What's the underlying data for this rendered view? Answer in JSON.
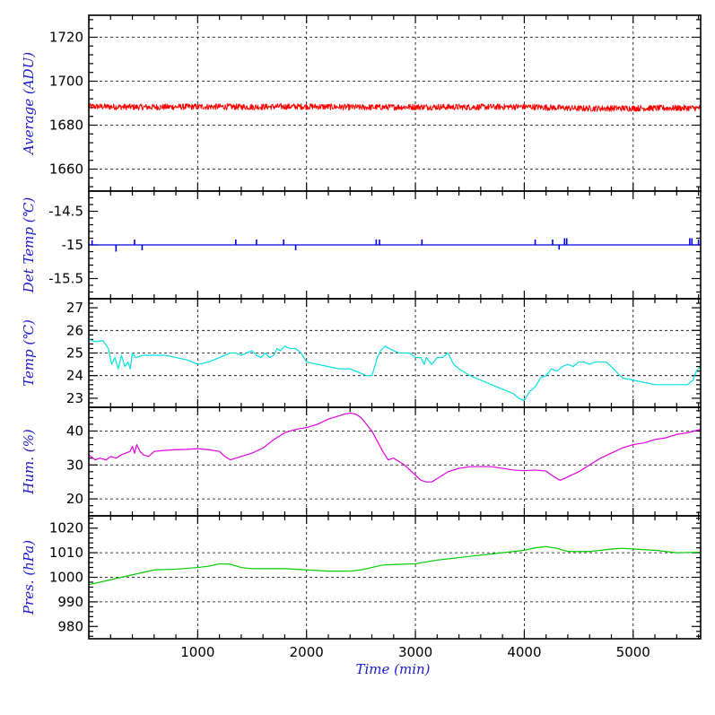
{
  "chart_data": [
    {
      "type": "line",
      "ylabel": "Average (ADU)",
      "xlim": [
        0,
        5620
      ],
      "ylim": [
        1650,
        1730
      ],
      "yticks": [
        1660,
        1680,
        1700,
        1720
      ],
      "ygrid": [
        1660,
        1680,
        1700,
        1720
      ],
      "minor_step": 4,
      "grid": true,
      "series": [
        {
          "color": "#ff0000",
          "noise": 1.4,
          "x": [
            0,
            500,
            1000,
            1500,
            2000,
            2500,
            3000,
            3500,
            4000,
            4500,
            5000,
            5620
          ],
          "y": [
            1688.5,
            1688.2,
            1688.4,
            1688.3,
            1688.5,
            1688.1,
            1688.3,
            1688.2,
            1688.4,
            1687.6,
            1687.7,
            1687.8
          ]
        }
      ]
    },
    {
      "type": "line",
      "ylabel": "Det Temp (℃)",
      "xlim": [
        0,
        5620
      ],
      "ylim": [
        -15.8,
        -14.2
      ],
      "yticks": [
        -15.5,
        -15,
        -14.5
      ],
      "ygrid": [],
      "minor_step": 0.1,
      "grid": false,
      "series": [
        {
          "color": "#0000dd",
          "baseline": -15,
          "x": [
            0,
            5620
          ],
          "y": [
            -15,
            -15
          ],
          "spikes": [
            [
              30,
              -14.93
            ],
            [
              250,
              -15.1
            ],
            [
              420,
              -14.92
            ],
            [
              490,
              -15.08
            ],
            [
              1350,
              -14.92
            ],
            [
              1540,
              -14.92
            ],
            [
              1790,
              -14.92
            ],
            [
              1900,
              -15.08
            ],
            [
              2640,
              -14.92
            ],
            [
              2670,
              -14.92
            ],
            [
              3060,
              -14.92
            ],
            [
              4100,
              -14.92
            ],
            [
              4260,
              -14.92
            ],
            [
              4320,
              -15.07
            ],
            [
              4370,
              -14.9
            ],
            [
              4390,
              -14.9
            ],
            [
              5520,
              -14.9
            ],
            [
              5540,
              -14.9
            ],
            [
              5600,
              -14.92
            ]
          ]
        }
      ]
    },
    {
      "type": "line",
      "ylabel": "Temp (℃)",
      "xlim": [
        0,
        5620
      ],
      "ylim": [
        22.6,
        27.4
      ],
      "yticks": [
        23,
        24,
        25,
        26,
        27
      ],
      "ygrid": [
        24,
        25,
        26
      ],
      "minor_step": 0.2,
      "grid": true,
      "series": [
        {
          "color": "#00e0e0",
          "x": [
            0,
            60,
            130,
            180,
            210,
            240,
            270,
            300,
            330,
            360,
            380,
            400,
            430,
            500,
            600,
            700,
            800,
            900,
            1000,
            1100,
            1200,
            1250,
            1300,
            1350,
            1400,
            1450,
            1500,
            1540,
            1580,
            1620,
            1660,
            1700,
            1730,
            1760,
            1800,
            1850,
            1900,
            1950,
            2000,
            2100,
            2200,
            2300,
            2400,
            2500,
            2550,
            2600,
            2620,
            2650,
            2680,
            2720,
            2760,
            2800,
            2850,
            2900,
            2950,
            3000,
            3050,
            3080,
            3100,
            3150,
            3200,
            3250,
            3300,
            3350,
            3400,
            3500,
            3600,
            3700,
            3800,
            3900,
            3950,
            4000,
            4050,
            4100,
            4150,
            4200,
            4250,
            4300,
            4350,
            4400,
            4450,
            4500,
            4550,
            4600,
            4650,
            4700,
            4750,
            4800,
            4900,
            5000,
            5100,
            5200,
            5300,
            5400,
            5450,
            5500,
            5550,
            5580,
            5620
          ],
          "y": [
            25.6,
            25.5,
            25.55,
            25.2,
            24.5,
            24.8,
            24.3,
            24.9,
            24.4,
            24.6,
            24.3,
            25.0,
            24.8,
            24.9,
            24.9,
            24.9,
            24.8,
            24.7,
            24.5,
            24.6,
            24.8,
            24.9,
            25.0,
            25.0,
            24.9,
            25.0,
            25.1,
            24.9,
            24.8,
            25.0,
            24.8,
            24.9,
            25.2,
            25.1,
            25.3,
            25.2,
            25.2,
            25.0,
            24.6,
            24.5,
            24.4,
            24.3,
            24.3,
            24.1,
            24.0,
            24.0,
            24.3,
            24.8,
            25.1,
            25.3,
            25.2,
            25.1,
            25.0,
            25.0,
            25.0,
            24.8,
            24.8,
            24.5,
            24.8,
            24.5,
            24.8,
            24.8,
            25.0,
            24.5,
            24.3,
            24.0,
            23.8,
            23.6,
            23.4,
            23.2,
            23.0,
            22.9,
            23.3,
            23.5,
            23.9,
            24.0,
            24.3,
            24.2,
            24.4,
            24.5,
            24.4,
            24.6,
            24.6,
            24.5,
            24.6,
            24.6,
            24.6,
            24.4,
            23.9,
            23.8,
            23.7,
            23.6,
            23.6,
            23.6,
            23.6,
            23.6,
            23.8,
            24.2,
            24.4
          ]
        }
      ]
    },
    {
      "type": "line",
      "ylabel": "Hum. (%)",
      "xlim": [
        0,
        5620
      ],
      "ylim": [
        15,
        47
      ],
      "yticks": [
        20,
        30,
        40
      ],
      "ygrid": [
        20,
        30,
        40
      ],
      "minor_step": 2,
      "grid": true,
      "series": [
        {
          "color": "#e000e0",
          "x": [
            0,
            60,
            100,
            160,
            200,
            250,
            300,
            340,
            380,
            400,
            420,
            440,
            470,
            500,
            550,
            600,
            700,
            800,
            900,
            1000,
            1100,
            1200,
            1250,
            1300,
            1400,
            1500,
            1600,
            1700,
            1800,
            1900,
            2000,
            2100,
            2200,
            2300,
            2350,
            2400,
            2450,
            2500,
            2550,
            2600,
            2650,
            2700,
            2750,
            2800,
            2850,
            2900,
            2950,
            3000,
            3050,
            3100,
            3150,
            3200,
            3300,
            3400,
            3500,
            3600,
            3700,
            3800,
            3900,
            4000,
            4100,
            4200,
            4250,
            4300,
            4330,
            4400,
            4500,
            4600,
            4700,
            4800,
            4900,
            5000,
            5100,
            5200,
            5300,
            5400,
            5500,
            5620
          ],
          "y": [
            33,
            31.5,
            32,
            31.5,
            32.5,
            32,
            33,
            33.5,
            34,
            35.5,
            33.5,
            36,
            34,
            33,
            32.5,
            34,
            34.3,
            34.5,
            34.6,
            34.8,
            34.5,
            34,
            32.5,
            31.5,
            32.5,
            33.5,
            35,
            37.5,
            39.5,
            40.5,
            41,
            42,
            43.5,
            44.5,
            45,
            45.3,
            45,
            44,
            42,
            40,
            37,
            34,
            31.5,
            32,
            31,
            30,
            28.5,
            27,
            25.5,
            25,
            25,
            26,
            28,
            29,
            29.5,
            29.5,
            29.5,
            29,
            28.5,
            28.3,
            28.5,
            28.2,
            27,
            26,
            25.5,
            26.5,
            28,
            30,
            32,
            33.5,
            35,
            36,
            36.5,
            37.5,
            38,
            39,
            39.5,
            40.5
          ]
        }
      ]
    },
    {
      "type": "line",
      "ylabel": "Pres. (hPa)",
      "xlabel": "Time (min)",
      "xlim": [
        0,
        5620
      ],
      "ylim": [
        975,
        1025
      ],
      "yticks": [
        980,
        990,
        1000,
        1010,
        1020
      ],
      "ygrid": [
        990,
        1000,
        1010
      ],
      "minor_step": 2,
      "grid": true,
      "xticks": [
        1000,
        2000,
        3000,
        4000,
        5000
      ],
      "series": [
        {
          "color": "#00cc00",
          "x": [
            0,
            200,
            400,
            600,
            800,
            1000,
            1100,
            1200,
            1300,
            1400,
            1500,
            1600,
            1800,
            2000,
            2200,
            2400,
            2500,
            2600,
            2700,
            2800,
            3000,
            3200,
            3400,
            3600,
            3800,
            4000,
            4100,
            4200,
            4300,
            4400,
            4600,
            4800,
            4900,
            5000,
            5200,
            5400,
            5620
          ],
          "y": [
            997,
            999,
            1001,
            1003,
            1003.3,
            1004,
            1004.5,
            1005.5,
            1005.3,
            1004,
            1003.5,
            1003.5,
            1003.5,
            1003,
            1002.5,
            1002.5,
            1003,
            1004,
            1005,
            1005.2,
            1005.5,
            1007,
            1008,
            1009,
            1010,
            1011,
            1012,
            1012.5,
            1011.8,
            1010.5,
            1010.5,
            1011.5,
            1011.8,
            1011.5,
            1011,
            1010,
            1010.2
          ]
        }
      ]
    }
  ]
}
